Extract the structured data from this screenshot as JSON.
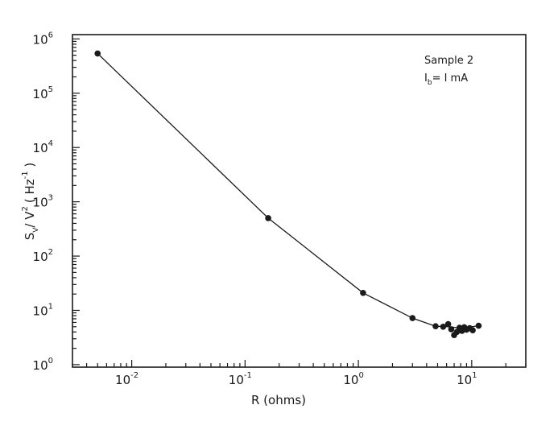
{
  "chart_data": {
    "type": "scatter",
    "x_scale": "log",
    "y_scale": "log",
    "xlim": [
      0.003,
      30
    ],
    "ylim": [
      0.9,
      1200000
    ],
    "grid": false,
    "xlabel": "R (ohms)",
    "ylabel": {
      "base": "S",
      "sub": "V",
      "mid": "/ V",
      "sup": "2",
      "unit_open": "( Hz",
      "unit_sup": "-1",
      "unit_close": " )"
    },
    "x_ticks": [
      {
        "base": "10",
        "exp": "-2",
        "value": 0.01
      },
      {
        "base": "10",
        "exp": "-1",
        "value": 0.1
      },
      {
        "base": "10",
        "exp": "0",
        "value": 1
      },
      {
        "base": "10",
        "exp": "1",
        "value": 10
      }
    ],
    "y_ticks": [
      {
        "base": "10",
        "exp": "0",
        "value": 1
      },
      {
        "base": "10",
        "exp": "1",
        "value": 10
      },
      {
        "base": "10",
        "exp": "2",
        "value": 100
      },
      {
        "base": "10",
        "exp": "3",
        "value": 1000
      },
      {
        "base": "10",
        "exp": "4",
        "value": 10000
      },
      {
        "base": "10",
        "exp": "5",
        "value": 100000
      },
      {
        "base": "10",
        "exp": "6",
        "value": 1000000
      }
    ],
    "annotation": {
      "line1": "Sample 2",
      "line2_base": "I",
      "line2_sub": "b",
      "line2_rest": "= I mA"
    },
    "series": [
      {
        "line_x": [
          0.005,
          0.16,
          1.1,
          3.0,
          4.8,
          6.3,
          8.0,
          11.5
        ],
        "line_y": [
          540000,
          500,
          21,
          7.2,
          5.1,
          5.0,
          4.7,
          5.2
        ],
        "x": [
          0.005,
          0.16,
          1.1,
          3.0,
          4.8,
          5.6,
          6.2,
          6.6,
          7.0,
          7.4,
          7.8,
          8.2,
          8.6,
          9.0,
          9.6,
          10.2,
          11.5
        ],
        "y": [
          540000,
          500,
          21,
          7.2,
          5.1,
          5.0,
          5.6,
          4.5,
          3.5,
          4.0,
          4.8,
          4.2,
          4.9,
          4.4,
          4.7,
          4.3,
          5.2
        ]
      }
    ]
  }
}
